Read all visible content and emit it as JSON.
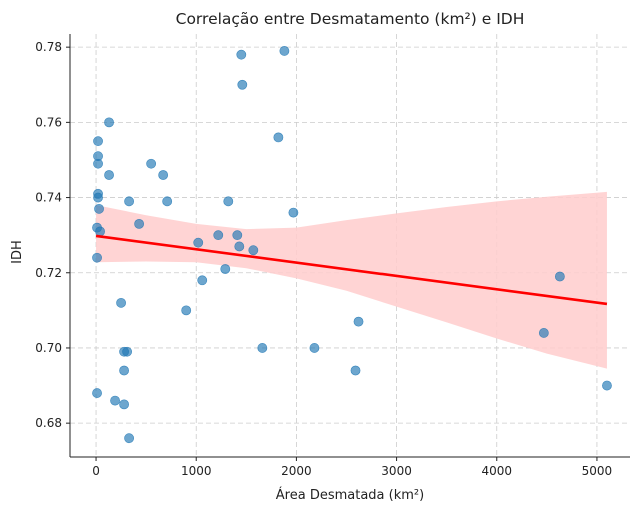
{
  "chart_data": {
    "type": "scatter",
    "title": "Correlação entre Desmatamento (km²) e IDH",
    "xlabel": "Área Desmatada (km²)",
    "ylabel": "IDH",
    "xlim": [
      -260,
      5330
    ],
    "ylim": [
      0.671,
      0.7835
    ],
    "xticks": [
      0,
      1000,
      2000,
      3000,
      4000,
      5000
    ],
    "yticks": [
      0.68,
      0.7,
      0.72,
      0.74,
      0.76,
      0.78
    ],
    "ytick_labels": [
      "0.68",
      "0.70",
      "0.72",
      "0.74",
      "0.76",
      "0.78"
    ],
    "grid": true,
    "colors": {
      "points": "#1f77b4",
      "regression": "#ff0000",
      "ci_band": "#ffcccc"
    },
    "points": [
      {
        "x": 1450,
        "y": 0.778
      },
      {
        "x": 1880,
        "y": 0.779
      },
      {
        "x": 1460,
        "y": 0.77
      },
      {
        "x": 130,
        "y": 0.76
      },
      {
        "x": 20,
        "y": 0.755
      },
      {
        "x": 1820,
        "y": 0.756
      },
      {
        "x": 20,
        "y": 0.751
      },
      {
        "x": 20,
        "y": 0.749
      },
      {
        "x": 550,
        "y": 0.749
      },
      {
        "x": 130,
        "y": 0.746
      },
      {
        "x": 670,
        "y": 0.746
      },
      {
        "x": 20,
        "y": 0.741
      },
      {
        "x": 20,
        "y": 0.74
      },
      {
        "x": 330,
        "y": 0.739
      },
      {
        "x": 710,
        "y": 0.739
      },
      {
        "x": 1320,
        "y": 0.739
      },
      {
        "x": 30,
        "y": 0.737
      },
      {
        "x": 1970,
        "y": 0.736
      },
      {
        "x": 430,
        "y": 0.733
      },
      {
        "x": 10,
        "y": 0.732
      },
      {
        "x": 40,
        "y": 0.731
      },
      {
        "x": 1220,
        "y": 0.73
      },
      {
        "x": 1410,
        "y": 0.73
      },
      {
        "x": 1020,
        "y": 0.728
      },
      {
        "x": 1430,
        "y": 0.727
      },
      {
        "x": 1570,
        "y": 0.726
      },
      {
        "x": 10,
        "y": 0.724
      },
      {
        "x": 1290,
        "y": 0.721
      },
      {
        "x": 4630,
        "y": 0.719
      },
      {
        "x": 1060,
        "y": 0.718
      },
      {
        "x": 250,
        "y": 0.712
      },
      {
        "x": 900,
        "y": 0.71
      },
      {
        "x": 2620,
        "y": 0.707
      },
      {
        "x": 4470,
        "y": 0.704
      },
      {
        "x": 1660,
        "y": 0.7
      },
      {
        "x": 2180,
        "y": 0.7
      },
      {
        "x": 280,
        "y": 0.699
      },
      {
        "x": 310,
        "y": 0.699
      },
      {
        "x": 2590,
        "y": 0.694
      },
      {
        "x": 280,
        "y": 0.694
      },
      {
        "x": 5100,
        "y": 0.69
      },
      {
        "x": 10,
        "y": 0.688
      },
      {
        "x": 190,
        "y": 0.686
      },
      {
        "x": 280,
        "y": 0.685
      },
      {
        "x": 330,
        "y": 0.676
      }
    ],
    "regression": {
      "x": [
        0,
        5100
      ],
      "y": [
        0.7298,
        0.7117
      ]
    },
    "confidence_band": {
      "x": [
        0,
        500,
        1000,
        1500,
        2000,
        2500,
        3000,
        3500,
        4000,
        4500,
        5100
      ],
      "upper": [
        0.738,
        0.7353,
        0.733,
        0.7316,
        0.732,
        0.734,
        0.7358,
        0.7375,
        0.739,
        0.7402,
        0.7415
      ],
      "lower": [
        0.7228,
        0.723,
        0.7228,
        0.7212,
        0.7185,
        0.7152,
        0.711,
        0.7068,
        0.7025,
        0.6985,
        0.6945
      ]
    }
  }
}
